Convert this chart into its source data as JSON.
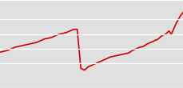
{
  "years": [
    1984,
    1985,
    1986,
    1987,
    1988,
    1989,
    1990,
    1991,
    1992,
    1993,
    1994,
    1994.5,
    1995,
    1995.5,
    1996,
    1997,
    1997.5,
    1998,
    1998.5,
    1999,
    1999.5,
    2000,
    2000.5,
    2001,
    2001.5,
    2002,
    2002.5,
    2003,
    2003.5,
    2004,
    2004.5,
    2005,
    2005.5,
    2006,
    2006.5,
    2007,
    2007.3,
    2007.6,
    2008,
    2008.5,
    2009
  ],
  "values": [
    60,
    61,
    63,
    64,
    65,
    66,
    68,
    69,
    71,
    72,
    74,
    74,
    50,
    49,
    51,
    53,
    54,
    55,
    56,
    57,
    57.5,
    58,
    58.5,
    59,
    59.5,
    61,
    62,
    63,
    63.5,
    65,
    66,
    67,
    68,
    70,
    71,
    73,
    71,
    74,
    78,
    82,
    85
  ],
  "line_color": "#cc0000",
  "line_width": 1.2,
  "background_color": "#e0e0e0",
  "grid_color": "#ffffff",
  "ylim": [
    38,
    92
  ],
  "xlim": [
    1984,
    2009
  ],
  "grid_y_positions": [
    38,
    53,
    62,
    71,
    80,
    92
  ]
}
